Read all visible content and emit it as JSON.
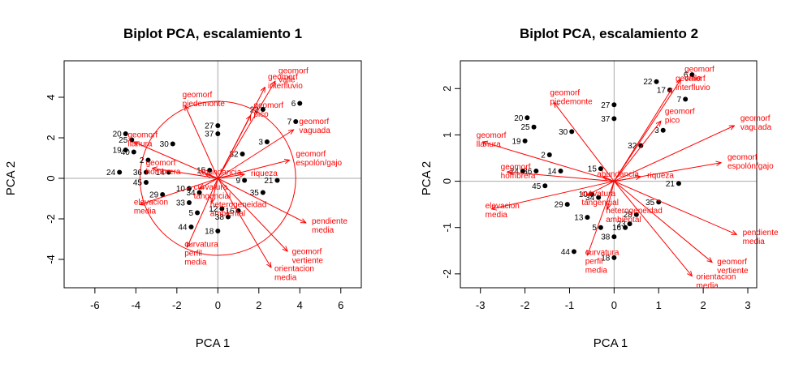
{
  "chart_data": [
    {
      "type": "scatter",
      "subtype": "biplot",
      "title": "Biplot PCA, escalamiento 1",
      "xlabel": "PCA  1",
      "ylabel": "PCA  2",
      "xlim": [
        -7.5,
        7.0
      ],
      "ylim": [
        -5.4,
        5.8
      ],
      "xticks": [
        "-6",
        "-4",
        "-2",
        "0",
        "2",
        "4",
        "6"
      ],
      "yticks": [
        "-4",
        "-2",
        "0",
        "2",
        "4"
      ],
      "colors": {
        "points": "#000000",
        "vectors": "#ff0000",
        "reference_lines": "#aaaaaa"
      },
      "circle": {
        "center": [
          0,
          0
        ],
        "radius": 3.8
      },
      "points": [
        {
          "label": "6",
          "x": 4.0,
          "y": 3.7
        },
        {
          "label": "22",
          "x": 2.2,
          "y": 3.4
        },
        {
          "label": "7",
          "x": 3.8,
          "y": 2.8
        },
        {
          "label": "27",
          "x": 0.0,
          "y": 2.6
        },
        {
          "label": "37",
          "x": 0.0,
          "y": 2.2
        },
        {
          "label": "3",
          "x": 2.4,
          "y": 1.8
        },
        {
          "label": "32",
          "x": 1.2,
          "y": 1.2
        },
        {
          "label": "20",
          "x": -4.5,
          "y": 2.2
        },
        {
          "label": "25",
          "x": -4.2,
          "y": 1.9
        },
        {
          "label": "30",
          "x": -2.2,
          "y": 1.7
        },
        {
          "label": "19",
          "x": -4.5,
          "y": 1.4
        },
        {
          "label": "40",
          "x": -4.1,
          "y": 1.3
        },
        {
          "label": "2",
          "x": -3.4,
          "y": 0.9
        },
        {
          "label": "24",
          "x": -4.8,
          "y": 0.3
        },
        {
          "label": "36",
          "x": -3.5,
          "y": 0.3
        },
        {
          "label": "14",
          "x": -2.4,
          "y": 0.3
        },
        {
          "label": "45",
          "x": -3.5,
          "y": -0.2
        },
        {
          "label": "15",
          "x": -0.4,
          "y": 0.4
        },
        {
          "label": "9",
          "x": 1.3,
          "y": -0.1
        },
        {
          "label": "21",
          "x": 2.9,
          "y": -0.1
        },
        {
          "label": "10",
          "x": -1.4,
          "y": -0.5
        },
        {
          "label": "34",
          "x": -0.9,
          "y": -0.7
        },
        {
          "label": "29",
          "x": -2.7,
          "y": -0.8
        },
        {
          "label": "33",
          "x": -1.4,
          "y": -1.2
        },
        {
          "label": "35",
          "x": 2.2,
          "y": -0.7
        },
        {
          "label": "5",
          "x": -1.0,
          "y": -1.7
        },
        {
          "label": "12",
          "x": 0.2,
          "y": -1.5
        },
        {
          "label": "16",
          "x": 1.0,
          "y": -1.6
        },
        {
          "label": "44",
          "x": -1.3,
          "y": -2.4
        },
        {
          "label": "18",
          "x": 0.0,
          "y": -2.6
        },
        {
          "label": "38",
          "x": 0.5,
          "y": -1.9
        }
      ],
      "vectors": [
        {
          "label_lines": [
            "geomorf",
            "valle"
          ],
          "x": 2.8,
          "y": 4.8
        },
        {
          "label_lines": [
            "geomorf",
            "interfluvio"
          ],
          "x": 2.3,
          "y": 4.5
        },
        {
          "label_lines": [
            "geomorf",
            "piedemonte"
          ],
          "x": -1.6,
          "y": 3.6
        },
        {
          "label_lines": [
            "geomorf",
            "pico"
          ],
          "x": 1.6,
          "y": 3.1
        },
        {
          "label_lines": [
            "geomorf",
            "vaguada"
          ],
          "x": 3.7,
          "y": 2.4
        },
        {
          "label_lines": [
            "geomorf",
            "espolón/gajo"
          ],
          "x": 3.5,
          "y": 0.9
        },
        {
          "label_lines": [
            "geomorf",
            "llanura"
          ],
          "x": -4.1,
          "y": 1.8
        },
        {
          "label_lines": [
            "geomorf",
            "hombrera"
          ],
          "x": -3.2,
          "y": 0.5
        },
        {
          "label_lines": [
            "abundancia"
          ],
          "x": -0.6,
          "y": 0.2
        },
        {
          "label_lines": [
            "riqueza"
          ],
          "x": 1.3,
          "y": 0.2
        },
        {
          "label_lines": [
            "elevacion",
            "media"
          ],
          "x": -3.8,
          "y": -1.3
        },
        {
          "label_lines": [
            "curvatura",
            "tangencial"
          ],
          "x": -0.9,
          "y": -0.5
        },
        {
          "label_lines": [
            "heterogeneidad",
            "ambiental"
          ],
          "x": -0.3,
          "y": -1.2
        },
        {
          "label_lines": [
            "pendiente",
            "media"
          ],
          "x": 4.3,
          "y": -2.2
        },
        {
          "label_lines": [
            "geomorf",
            "vertiente"
          ],
          "x": 3.4,
          "y": -3.6
        },
        {
          "label_lines": [
            "orientacion",
            "media"
          ],
          "x": 2.6,
          "y": -4.4
        },
        {
          "label_lines": [
            "curvatura",
            "perfil",
            "media"
          ],
          "x": -1.5,
          "y": -3.4
        }
      ]
    },
    {
      "type": "scatter",
      "subtype": "biplot",
      "title": "Biplot PCA, escalamiento 2",
      "xlabel": "PCA  1",
      "ylabel": "PCA  2",
      "xlim": [
        -3.45,
        3.2
      ],
      "ylim": [
        -2.3,
        2.6
      ],
      "xticks": [
        "-3",
        "-2",
        "-1",
        "0",
        "1",
        "2",
        "3"
      ],
      "yticks": [
        "-2",
        "-1",
        "0",
        "1",
        "2"
      ],
      "colors": {
        "points": "#000000",
        "vectors": "#ff0000",
        "reference_lines": "#aaaaaa"
      },
      "points": [
        {
          "label": "6",
          "x": 1.75,
          "y": 2.3
        },
        {
          "label": "22",
          "x": 0.95,
          "y": 2.15
        },
        {
          "label": "17",
          "x": 1.25,
          "y": 1.97
        },
        {
          "label": "7",
          "x": 1.6,
          "y": 1.77
        },
        {
          "label": "27",
          "x": 0.0,
          "y": 1.65
        },
        {
          "label": "37",
          "x": 0.0,
          "y": 1.35
        },
        {
          "label": "3",
          "x": 1.1,
          "y": 1.1
        },
        {
          "label": "32",
          "x": 0.6,
          "y": 0.77
        },
        {
          "label": "20",
          "x": -1.95,
          "y": 1.37
        },
        {
          "label": "25",
          "x": -1.8,
          "y": 1.17
        },
        {
          "label": "30",
          "x": -0.95,
          "y": 1.07
        },
        {
          "label": "19",
          "x": -2.0,
          "y": 0.87
        },
        {
          "label": "2",
          "x": -1.45,
          "y": 0.57
        },
        {
          "label": "24",
          "x": -2.05,
          "y": 0.22
        },
        {
          "label": "36",
          "x": -1.75,
          "y": 0.22
        },
        {
          "label": "14",
          "x": -1.2,
          "y": 0.22
        },
        {
          "label": "45",
          "x": -1.55,
          "y": -0.1
        },
        {
          "label": "15",
          "x": -0.3,
          "y": 0.27
        },
        {
          "label": "21",
          "x": 1.45,
          "y": -0.05
        },
        {
          "label": "10",
          "x": -0.5,
          "y": -0.28
        },
        {
          "label": "34",
          "x": -0.35,
          "y": -0.35
        },
        {
          "label": "29",
          "x": -1.05,
          "y": -0.5
        },
        {
          "label": "13",
          "x": -0.6,
          "y": -0.78
        },
        {
          "label": "35",
          "x": 1.0,
          "y": -0.45
        },
        {
          "label": "23",
          "x": 0.35,
          "y": -0.92
        },
        {
          "label": "16",
          "x": 0.25,
          "y": -1.0
        },
        {
          "label": "5",
          "x": -0.3,
          "y": -1.0
        },
        {
          "label": "38",
          "x": 0.0,
          "y": -1.2
        },
        {
          "label": "28",
          "x": 0.5,
          "y": -0.72
        },
        {
          "label": "44",
          "x": -0.9,
          "y": -1.52
        },
        {
          "label": "18",
          "x": 0.0,
          "y": -1.65
        }
      ],
      "vectors": [
        {
          "label_lines": [
            "geomorf",
            "valle"
          ],
          "x": 1.5,
          "y": 2.2
        },
        {
          "label_lines": [
            "geomorf",
            "interfluvio"
          ],
          "x": 1.3,
          "y": 2.0
        },
        {
          "label_lines": [
            "geomorf",
            "piedemonte"
          ],
          "x": -1.35,
          "y": 1.7
        },
        {
          "label_lines": [
            "geomorf",
            "pico"
          ],
          "x": 1.05,
          "y": 1.3
        },
        {
          "label_lines": [
            "geomorf",
            "vaguada"
          ],
          "x": 2.7,
          "y": 1.2
        },
        {
          "label_lines": [
            "geomorf",
            "espolón/gajo"
          ],
          "x": 2.4,
          "y": 0.4
        },
        {
          "label_lines": [
            "geomorf",
            "llanura"
          ],
          "x": -2.95,
          "y": 0.85
        },
        {
          "label_lines": [
            "geomorf",
            "hombrera"
          ],
          "x": -2.4,
          "y": 0.2
        },
        {
          "label_lines": [
            "abundancia"
          ],
          "x": -0.25,
          "y": 0.1
        },
        {
          "label_lines": [
            "riqueza"
          ],
          "x": 0.6,
          "y": 0.1
        },
        {
          "label_lines": [
            "elevacion",
            "media"
          ],
          "x": -2.75,
          "y": -0.6
        },
        {
          "label_lines": [
            "curvatura",
            "tangencial"
          ],
          "x": -0.6,
          "y": -0.3
        },
        {
          "label_lines": [
            "heterogeneidad",
            "ambiental"
          ],
          "x": -0.15,
          "y": -0.6
        },
        {
          "label_lines": [
            "pendiente",
            "media"
          ],
          "x": 2.75,
          "y": -1.15
        },
        {
          "label_lines": [
            "geomorf",
            "vertiente"
          ],
          "x": 2.2,
          "y": -1.75
        },
        {
          "label_lines": [
            "orientacion",
            "media"
          ],
          "x": 1.75,
          "y": -2.05
        },
        {
          "label_lines": [
            "curvatura",
            "perfil",
            "media"
          ],
          "x": -0.6,
          "y": -1.6
        }
      ]
    }
  ]
}
